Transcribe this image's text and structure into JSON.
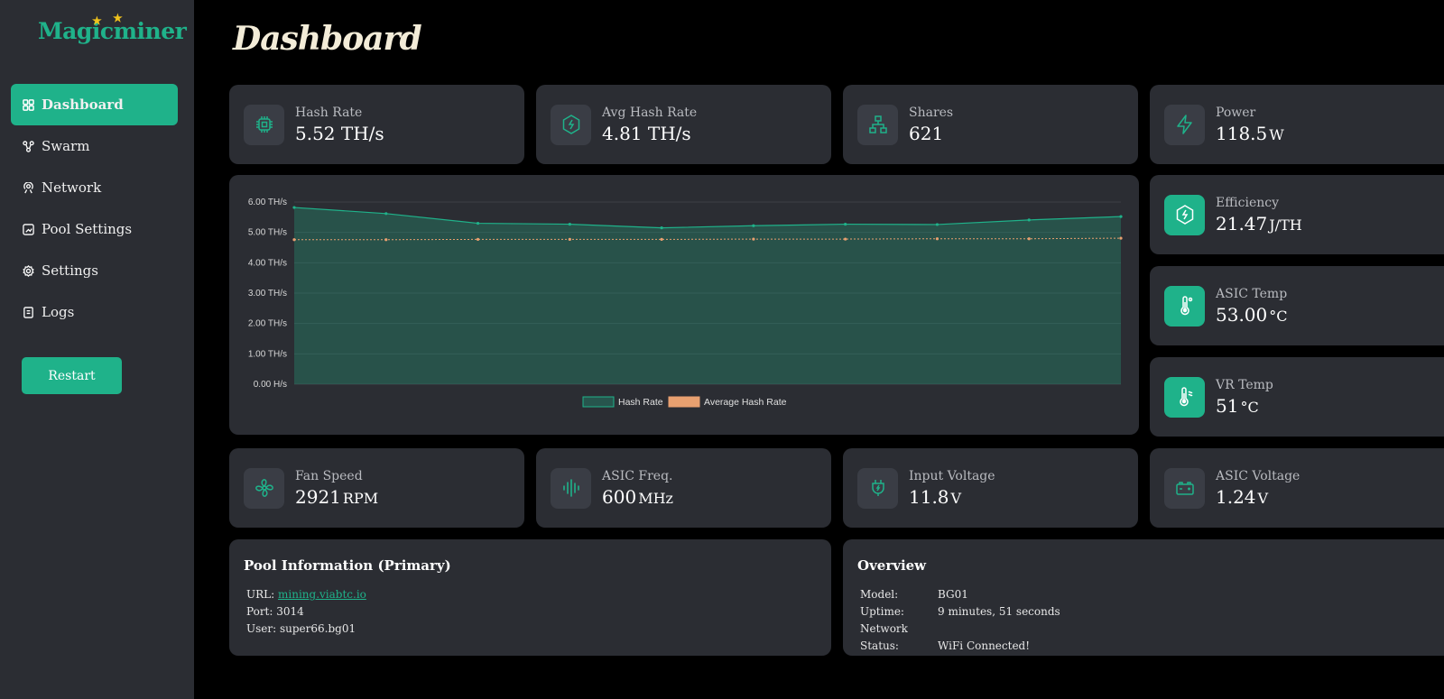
{
  "app": {
    "logo": "Magicminer"
  },
  "sidebar": {
    "items": [
      {
        "label": "Dashboard",
        "icon": "grid-icon"
      },
      {
        "label": "Swarm",
        "icon": "swarm-icon"
      },
      {
        "label": "Network",
        "icon": "network-icon"
      },
      {
        "label": "Pool Settings",
        "icon": "pool-icon"
      },
      {
        "label": "Settings",
        "icon": "gear-icon"
      },
      {
        "label": "Logs",
        "icon": "logs-icon"
      }
    ],
    "restart_label": "Restart"
  },
  "page": {
    "title": "Dashboard"
  },
  "stats": {
    "hash_rate": {
      "label": "Hash Rate",
      "value": "5.52 TH/s",
      "unit": ""
    },
    "avg_hash_rate": {
      "label": "Avg Hash Rate",
      "value": "4.81 TH/s",
      "unit": ""
    },
    "shares": {
      "label": "Shares",
      "value": "621",
      "unit": ""
    },
    "power": {
      "label": "Power",
      "value": "118.5",
      "unit": "W"
    },
    "efficiency": {
      "label": "Efficiency",
      "value": "21.47",
      "unit": "J/TH"
    },
    "asic_temp": {
      "label": "ASIC Temp",
      "value": "53.00",
      "unit": "°C"
    },
    "vr_temp": {
      "label": "VR Temp",
      "value": "51",
      "unit": "°C"
    },
    "fan_speed": {
      "label": "Fan Speed",
      "value": "2921",
      "unit": "RPM"
    },
    "asic_freq": {
      "label": "ASIC Freq.",
      "value": "600",
      "unit": "MHz"
    },
    "input_voltage": {
      "label": "Input Voltage",
      "value": "11.8",
      "unit": "V"
    },
    "asic_voltage": {
      "label": "ASIC Voltage",
      "value": "1.24",
      "unit": "V"
    }
  },
  "pool": {
    "title": "Pool Information (Primary)",
    "url_label": "URL:",
    "url": "mining.viabtc.io",
    "port_label": "Port:",
    "port": "3014",
    "user_label": "User:",
    "user": "super66.bg01"
  },
  "overview": {
    "title": "Overview",
    "model_label": "Model:",
    "model": "BG01",
    "uptime_label": "Uptime:",
    "uptime": "9 minutes, 51 seconds",
    "network_label": "Network Status:",
    "network": "WiFi Connected!"
  },
  "colors": {
    "accent": "#1fb28a",
    "card": "#2b2d33",
    "avg_line": "#e8a070"
  },
  "chart_data": {
    "type": "area",
    "x": [
      1,
      2,
      3,
      4,
      5,
      6,
      7,
      8,
      9,
      10
    ],
    "series": [
      {
        "name": "Hash Rate",
        "values": [
          5.82,
          5.62,
          5.3,
          5.27,
          5.15,
          5.22,
          5.27,
          5.26,
          5.41,
          5.52
        ]
      },
      {
        "name": "Average Hash Rate",
        "values": [
          4.76,
          4.76,
          4.77,
          4.77,
          4.77,
          4.78,
          4.78,
          4.79,
          4.79,
          4.81
        ]
      }
    ],
    "yticks": [
      "6.00 TH/s",
      "5.00 TH/s",
      "4.00 TH/s",
      "3.00 TH/s",
      "2.00 TH/s",
      "1.00 TH/s",
      "0.00 H/s"
    ],
    "ylim": [
      0,
      6
    ],
    "legend": "bottom",
    "grid": true
  }
}
